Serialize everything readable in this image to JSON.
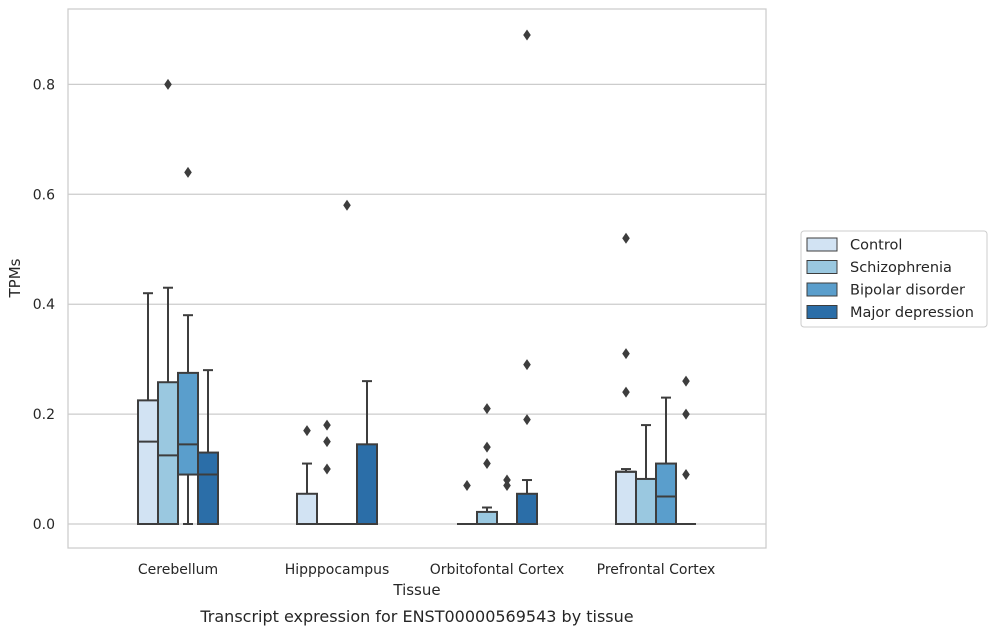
{
  "chart_data": {
    "type": "box",
    "caption": "Transcript expression for ENST00000569543 by tissue",
    "xlabel": "Tissue",
    "ylabel": "TPMs",
    "ylim": [
      -0.044,
      0.94
    ],
    "yticks": [
      "0.0",
      "0.2",
      "0.4",
      "0.6",
      "0.8"
    ],
    "grid": "horizontal",
    "legend_position": "right",
    "categories": [
      "Cerebellum",
      "Hipppocampus",
      "Orbitofontal Cortex",
      "Prefrontal Cortex"
    ],
    "series": [
      {
        "name": "Control",
        "color": "#d2e3f3",
        "boxes": [
          {
            "q1": 0.0,
            "median": 0.15,
            "q3": 0.225,
            "whislo": 0.0,
            "whishi": 0.42,
            "fliers": []
          },
          {
            "q1": 0.0,
            "median": 0.0,
            "q3": 0.055,
            "whislo": 0.0,
            "whishi": 0.11,
            "fliers": [
              0.17
            ]
          },
          {
            "q1": 0.0,
            "median": 0.0,
            "q3": 0.0,
            "whislo": 0.0,
            "whishi": 0.0,
            "fliers": [
              0.07
            ]
          },
          {
            "q1": 0.0,
            "median": 0.095,
            "q3": 0.095,
            "whislo": 0.0,
            "whishi": 0.1,
            "fliers": [
              0.52,
              0.31,
              0.24
            ]
          }
        ]
      },
      {
        "name": "Schizophrenia",
        "color": "#9ac8e0",
        "boxes": [
          {
            "q1": 0.0,
            "median": 0.125,
            "q3": 0.258,
            "whislo": 0.0,
            "whishi": 0.43,
            "fliers": [
              0.8
            ]
          },
          {
            "q1": 0.0,
            "median": 0.0,
            "q3": 0.0,
            "whislo": 0.0,
            "whishi": 0.0,
            "fliers": [
              0.18,
              0.15,
              0.1
            ]
          },
          {
            "q1": 0.0,
            "median": 0.0,
            "q3": 0.022,
            "whislo": 0.0,
            "whishi": 0.03,
            "fliers": [
              0.21,
              0.14,
              0.11
            ]
          },
          {
            "q1": 0.0,
            "median": 0.0,
            "q3": 0.082,
            "whislo": 0.0,
            "whishi": 0.18,
            "fliers": []
          }
        ]
      },
      {
        "name": "Bipolar disorder",
        "color": "#5a9ecc",
        "boxes": [
          {
            "q1": 0.09,
            "median": 0.145,
            "q3": 0.275,
            "whislo": 0.0,
            "whishi": 0.38,
            "fliers": [
              0.64
            ]
          },
          {
            "q1": 0.0,
            "median": 0.0,
            "q3": 0.0,
            "whislo": 0.0,
            "whishi": 0.0,
            "fliers": [
              0.58
            ]
          },
          {
            "q1": 0.0,
            "median": 0.0,
            "q3": 0.0,
            "whislo": 0.0,
            "whishi": 0.0,
            "fliers": [
              0.08,
              0.07
            ]
          },
          {
            "q1": 0.0,
            "median": 0.05,
            "q3": 0.11,
            "whislo": 0.0,
            "whishi": 0.23,
            "fliers": []
          }
        ]
      },
      {
        "name": "Major depression",
        "color": "#2b6ea8",
        "boxes": [
          {
            "q1": 0.0,
            "median": 0.09,
            "q3": 0.13,
            "whislo": 0.0,
            "whishi": 0.28,
            "fliers": []
          },
          {
            "q1": 0.0,
            "median": 0.0,
            "q3": 0.145,
            "whislo": 0.0,
            "whishi": 0.26,
            "fliers": []
          },
          {
            "q1": 0.0,
            "median": 0.0,
            "q3": 0.055,
            "whislo": 0.0,
            "whishi": 0.08,
            "fliers": [
              0.89,
              0.29,
              0.19
            ]
          },
          {
            "q1": 0.0,
            "median": 0.0,
            "q3": 0.0,
            "whislo": 0.0,
            "whishi": 0.0,
            "fliers": [
              0.26,
              0.2,
              0.09
            ]
          }
        ]
      }
    ]
  }
}
